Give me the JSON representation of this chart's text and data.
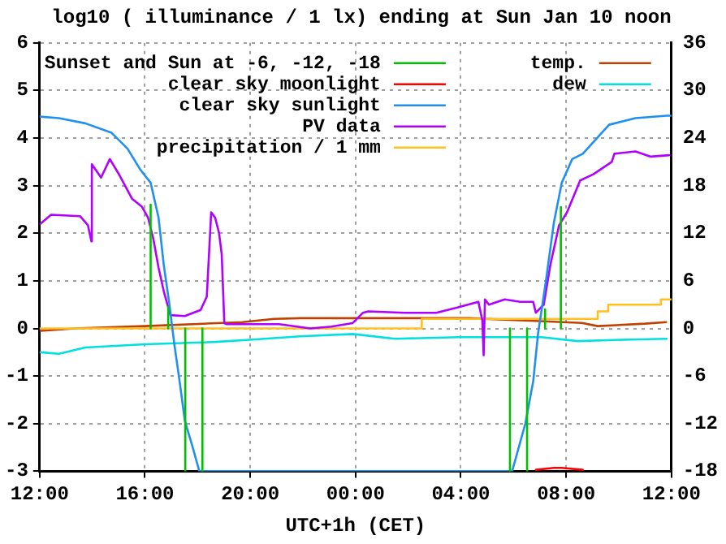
{
  "chart_data": {
    "type": "line",
    "title": "log10 ( illuminance / 1 lx) ending at Sun Jan 10 noon",
    "xlabel": "UTC+1h (CET)",
    "xlim": [
      "--01-09T12:00",
      "--01-10T12:00"
    ],
    "xticks": [
      {
        "value": "--01-09T12:00",
        "label": "12:00"
      },
      {
        "value": "--01-09T16:00",
        "label": "16:00"
      },
      {
        "value": "--01-09T20:00",
        "label": "20:00"
      },
      {
        "value": "--01-10T00:00",
        "label": "00:00"
      },
      {
        "value": "--01-10T04:00",
        "label": "04:00"
      },
      {
        "value": "--01-10T08:00",
        "label": "08:00"
      },
      {
        "value": "--01-10T12:00",
        "label": "12:00"
      }
    ],
    "ylim": [
      -3,
      6
    ],
    "yticks": [
      -3,
      -2,
      -1,
      0,
      1,
      2,
      3,
      4,
      5,
      6
    ],
    "y2lim": [
      -18,
      36
    ],
    "y2ticks": [
      -18,
      -12,
      -6,
      0,
      6,
      12,
      18,
      24,
      30,
      36
    ],
    "grid": true,
    "legend": "top",
    "marker": "none",
    "line_style": "solid",
    "series": [
      {
        "name": "Sunset and Sun at -6, -12, -18",
        "color": "#00c000",
        "x": [
          "--01-09T16:13",
          "--01-09T16:13",
          null,
          "--01-09T16:53",
          "--01-09T16:53",
          null,
          "--01-09T17:32",
          "--01-09T17:32",
          null,
          "--01-09T18:11",
          "--01-09T18:11",
          null,
          "--01-10T05:52",
          "--01-10T05:52",
          null,
          "--01-10T06:31",
          "--01-10T06:31",
          null,
          "--01-10T07:12",
          "--01-10T07:12",
          null,
          "--01-10T07:48",
          "--01-10T07:48"
        ],
        "values": [
          0,
          2.6,
          null,
          0,
          0.45,
          null,
          0,
          -3,
          null,
          0,
          -3,
          null,
          0,
          -3,
          null,
          0,
          -3,
          null,
          0,
          0.4,
          null,
          0,
          2.55
        ]
      },
      {
        "name": "clear sky moonlight",
        "color": "#ff0000",
        "x": [
          "--01-10T06:51",
          "--01-10T07:32",
          "--01-10T07:50",
          "--01-10T08:38"
        ],
        "values": [
          -2.97,
          -2.93,
          -2.93,
          -2.97
        ]
      },
      {
        "name": "clear sky sunlight",
        "color": "#2090f0",
        "x": [
          "--01-09T12:00",
          "--01-09T12:44",
          "--01-09T13:44",
          "--01-09T14:44",
          "--01-09T15:20",
          "--01-09T15:50",
          "--01-09T16:13",
          "--01-09T16:31",
          "--01-09T16:43",
          "--01-09T16:55",
          "--01-09T17:07",
          "--01-09T17:19",
          "--01-09T17:31",
          "--01-09T17:49",
          "--01-09T18:04",
          "--01-10T05:57",
          "--01-10T06:27",
          "--01-10T06:45",
          "--01-10T06:56",
          "--01-10T07:14",
          "--01-10T07:32",
          "--01-10T07:50",
          "--01-10T08:14",
          "--01-10T08:38",
          "--01-10T09:38",
          "--01-10T10:38",
          "--01-10T11:49",
          "--01-10T12:00"
        ],
        "values": [
          4.45,
          4.42,
          4.31,
          4.11,
          3.78,
          3.33,
          3.06,
          2.33,
          1.33,
          0.56,
          -0.33,
          -1.11,
          -1.94,
          -2.5,
          -3,
          -3,
          -2,
          -1.11,
          -0.11,
          1,
          2.22,
          3.06,
          3.56,
          3.67,
          4.28,
          4.42,
          4.47,
          4.47
        ]
      },
      {
        "name": "PV data",
        "color": "#b000ff",
        "x": [
          "--01-09T12:02",
          "--01-09T12:26",
          "--01-09T13:32",
          "--01-09T13:50",
          "--01-09T13:58",
          "--01-09T13:59",
          "--01-09T14:20",
          "--01-09T14:40",
          "--01-09T15:02",
          "--01-09T15:31",
          "--01-09T15:53",
          "--01-09T16:07",
          "--01-09T16:19",
          "--01-09T16:31",
          "--01-09T16:43",
          "--01-09T16:58",
          "--01-09T17:31",
          "--01-09T18:07",
          "--01-09T18:21",
          "--01-09T18:31",
          "--01-09T18:40",
          "--01-09T18:49",
          "--01-09T18:55",
          "--01-09T19:01",
          "--01-09T19:06",
          "--01-09T20:06",
          "--01-09T21:06",
          "--01-09T22:17",
          "--01-09T23:05",
          "--01-09T23:53",
          "--01-10T00:17",
          "--01-10T00:29",
          "--01-10T01:52",
          "--01-10T03:04",
          "--01-10T03:52",
          "--01-10T04:40",
          "--01-10T04:49",
          "--01-10T04:52",
          "--01-10T04:55",
          "--01-10T05:04",
          "--01-10T05:40",
          "--01-10T06:15",
          "--01-10T06:45",
          "--01-10T06:51",
          "--01-10T07:09",
          "--01-10T07:24",
          "--01-10T07:44",
          "--01-10T08:02",
          "--01-10T08:32",
          "--01-10T09:02",
          "--01-10T09:44",
          "--01-10T09:50",
          "--01-10T10:38",
          "--01-10T11:13",
          "--01-10T11:55"
        ],
        "values": [
          2.2,
          2.39,
          2.36,
          2.17,
          1.83,
          3.45,
          3.17,
          3.56,
          3.22,
          2.72,
          2.56,
          2.33,
          1.89,
          1.28,
          0.78,
          0.28,
          0.26,
          0.39,
          0.67,
          2.44,
          2.33,
          2,
          1.56,
          0.11,
          0.09,
          0.09,
          0.09,
          0,
          0.04,
          0.11,
          0.33,
          0.36,
          0.33,
          0.33,
          0.44,
          0.56,
          0.17,
          -0.56,
          0.61,
          0.5,
          0.61,
          0.56,
          0.56,
          0.33,
          0.5,
          1.33,
          2.17,
          2.44,
          3.11,
          3.24,
          3.5,
          3.67,
          3.72,
          3.61,
          3.64
        ]
      },
      {
        "name": "precipitation / 1 mm",
        "type": "step",
        "color": "#ffc020",
        "x": [
          "--01-09T12:00",
          "--01-10T02:31",
          "--01-10T09:12",
          "--01-10T09:36",
          "--01-10T11:36",
          "--01-10T12:00"
        ],
        "values": [
          0,
          0.2,
          0.36,
          0.5,
          0.61,
          0.61
        ]
      },
      {
        "name": "temp.",
        "axis": "y2",
        "color": "#c04000",
        "x": [
          "--01-09T12:02",
          "--01-09T13:20",
          "--01-09T16:00",
          "--01-09T19:42",
          "--01-09T20:54",
          "--01-09T21:54",
          "--01-10T00:06",
          "--01-10T02:40",
          "--01-10T04:18",
          "--01-10T06:27",
          "--01-10T08:36",
          "--01-10T09:12",
          "--01-10T11:00",
          "--01-10T11:48"
        ],
        "values": [
          -0.3,
          0,
          0.3,
          0.8,
          1.2,
          1.3,
          1.3,
          1.3,
          1.3,
          1,
          0.7,
          0.3,
          0.6,
          0.8
        ]
      },
      {
        "name": "dew",
        "axis": "y2",
        "color": "#00e0e0",
        "x": [
          "--01-09T12:02",
          "--01-09T12:44",
          "--01-09T13:44",
          "--01-09T16:00",
          "--01-09T18:41",
          "--01-09T20:05",
          "--01-09T21:53",
          "--01-09T23:54",
          "--01-10T01:30",
          "--01-10T03:54",
          "--01-10T07:04",
          "--01-10T08:26",
          "--01-10T10:26",
          "--01-10T11:49"
        ],
        "values": [
          -3,
          -3.2,
          -2.4,
          -2,
          -1.7,
          -1.4,
          -1,
          -0.7,
          -1.3,
          -1.1,
          -1.1,
          -1.6,
          -1.4,
          -1.3
        ]
      }
    ]
  }
}
